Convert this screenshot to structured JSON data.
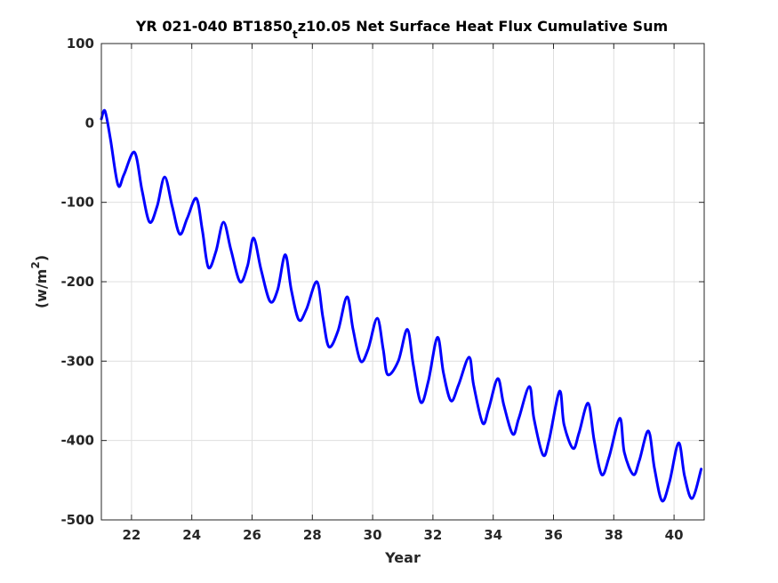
{
  "chart_data": {
    "type": "line",
    "title_parts": [
      "YR 021-040 BT1850",
      "t",
      "z10.05 Net Surface Heat Flux  Cumulative Sum"
    ],
    "xlabel": "Year",
    "ylabel_parts": [
      "(w/m",
      "2",
      ")"
    ],
    "xlim": [
      21,
      41
    ],
    "ylim": [
      -500,
      100
    ],
    "xticks": [
      "22",
      "24",
      "26",
      "28",
      "30",
      "32",
      "34",
      "36",
      "38",
      "40"
    ],
    "yticks": [
      "100",
      "0",
      "-100",
      "-200",
      "-300",
      "-400",
      "-500"
    ],
    "grid": true,
    "series": [
      {
        "color": "#0000ff",
        "x": [
          21.0,
          21.12,
          21.3,
          21.55,
          21.75,
          22.1,
          22.35,
          22.6,
          22.85,
          23.1,
          23.35,
          23.6,
          23.85,
          24.15,
          24.35,
          24.55,
          24.8,
          25.05,
          25.3,
          25.6,
          25.85,
          26.05,
          26.3,
          26.6,
          26.85,
          27.1,
          27.3,
          27.55,
          27.8,
          28.15,
          28.35,
          28.55,
          28.85,
          29.15,
          29.35,
          29.6,
          29.85,
          30.15,
          30.35,
          30.5,
          30.85,
          31.15,
          31.35,
          31.6,
          31.85,
          32.15,
          32.35,
          32.6,
          32.85,
          33.2,
          33.35,
          33.65,
          33.85,
          34.15,
          34.35,
          34.65,
          34.85,
          35.2,
          35.35,
          35.65,
          35.85,
          36.2,
          36.35,
          36.65,
          36.85,
          37.15,
          37.35,
          37.6,
          37.85,
          38.2,
          38.35,
          38.65,
          38.85,
          39.15,
          39.35,
          39.6,
          39.85,
          40.15,
          40.35,
          40.6,
          40.9
        ],
        "y": [
          5,
          15,
          -20,
          -78,
          -65,
          -37,
          -85,
          -125,
          -105,
          -68,
          -105,
          -140,
          -120,
          -95,
          -135,
          -182,
          -162,
          -125,
          -160,
          -200,
          -180,
          -145,
          -185,
          -225,
          -210,
          -166,
          -210,
          -248,
          -235,
          -200,
          -245,
          -282,
          -262,
          -219,
          -260,
          -300,
          -285,
          -246,
          -285,
          -317,
          -300,
          -260,
          -305,
          -352,
          -325,
          -270,
          -315,
          -350,
          -330,
          -295,
          -330,
          -378,
          -360,
          -322,
          -355,
          -392,
          -372,
          -332,
          -372,
          -418,
          -400,
          -338,
          -380,
          -410,
          -390,
          -353,
          -400,
          -443,
          -420,
          -372,
          -415,
          -443,
          -425,
          -388,
          -435,
          -476,
          -452,
          -403,
          -445,
          -473,
          -436
        ]
      }
    ]
  }
}
